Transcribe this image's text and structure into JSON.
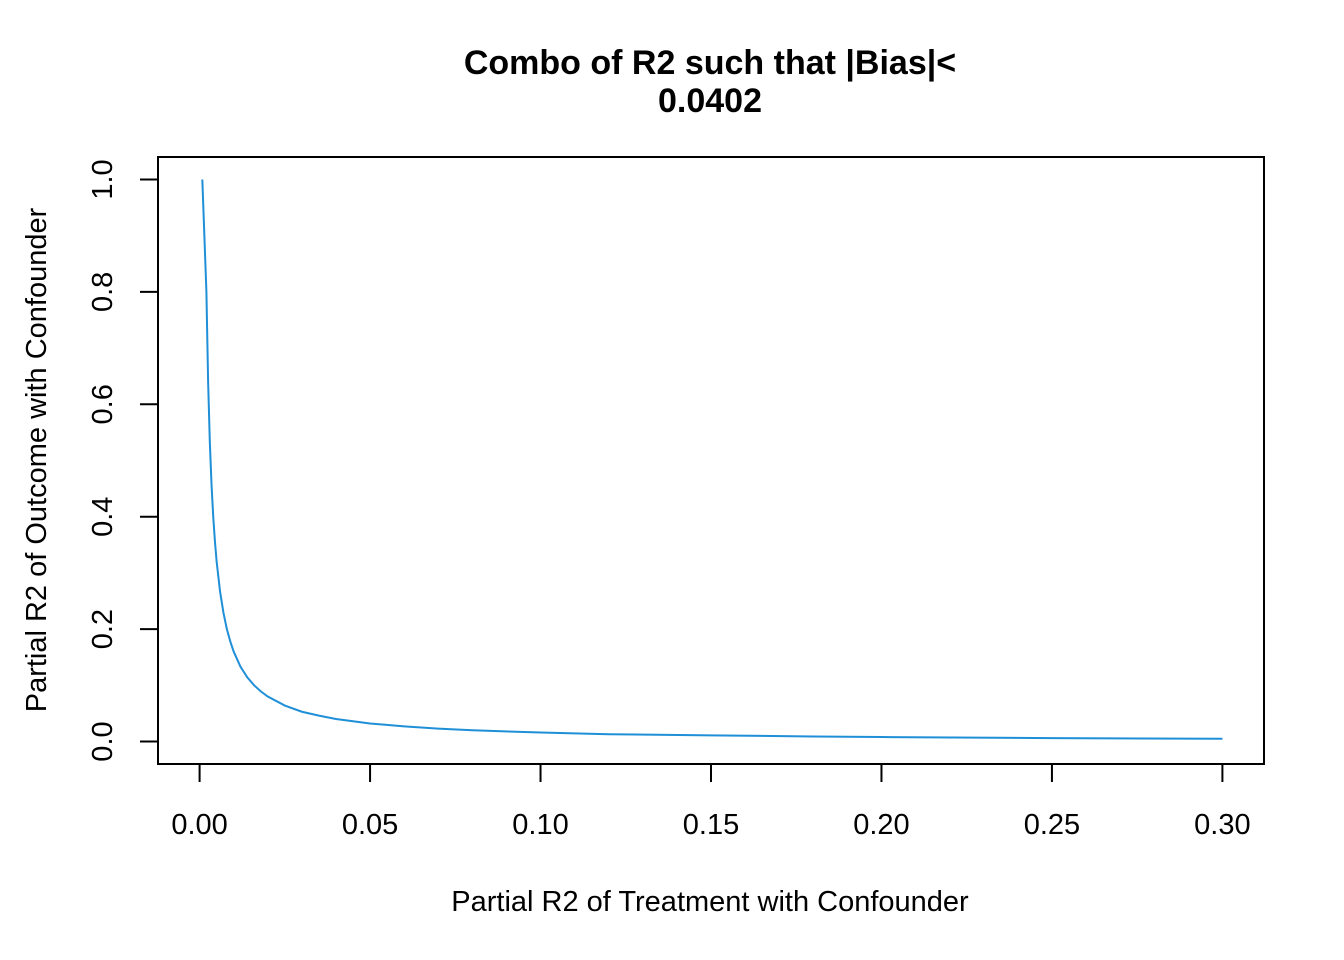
{
  "chart_data": {
    "type": "line",
    "title_lines": [
      "Combo of R2 such that |Bias|<",
      "0.0402"
    ],
    "xlabel": "Partial R2 of Treatment with Confounder",
    "ylabel": "Partial R2 of Outcome with Confounder",
    "xlim": [
      -0.0122,
      0.3122
    ],
    "ylim": [
      -0.04,
      1.04
    ],
    "x_ticks": [
      0.0,
      0.05,
      0.1,
      0.15,
      0.2,
      0.25,
      0.3
    ],
    "x_tick_labels": [
      "0.00",
      "0.05",
      "0.10",
      "0.15",
      "0.20",
      "0.25",
      "0.30"
    ],
    "y_ticks": [
      0.0,
      0.2,
      0.4,
      0.6,
      0.8,
      1.0
    ],
    "y_tick_labels": [
      "0.0",
      "0.2",
      "0.4",
      "0.6",
      "0.8",
      "1.0"
    ],
    "grid": false,
    "series": [
      {
        "color": "#1f8fd8",
        "x": [
          0.0008,
          0.002,
          0.0025,
          0.003,
          0.0035,
          0.004,
          0.0045,
          0.005,
          0.006,
          0.007,
          0.008,
          0.009,
          0.01,
          0.012,
          0.014,
          0.016,
          0.018,
          0.02,
          0.025,
          0.03,
          0.035,
          0.04,
          0.05,
          0.06,
          0.07,
          0.08,
          0.1,
          0.12,
          0.15,
          0.18,
          0.2,
          0.25,
          0.3
        ],
        "y": [
          1.0,
          0.8,
          0.64,
          0.533,
          0.457,
          0.4,
          0.356,
          0.32,
          0.267,
          0.229,
          0.2,
          0.178,
          0.16,
          0.133,
          0.114,
          0.1,
          0.089,
          0.08,
          0.064,
          0.053,
          0.046,
          0.04,
          0.032,
          0.027,
          0.023,
          0.02,
          0.016,
          0.013,
          0.011,
          0.009,
          0.008,
          0.006,
          0.005
        ]
      }
    ]
  }
}
